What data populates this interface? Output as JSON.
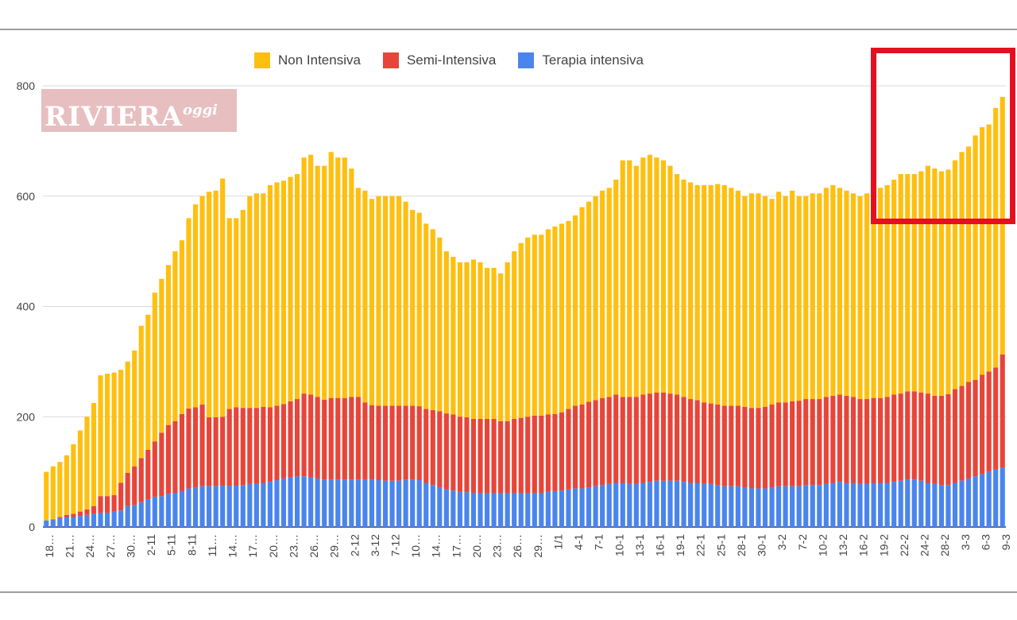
{
  "legend": [
    {
      "name": "Non Intensiva",
      "color": "#ffbf0f"
    },
    {
      "name": "Semi-Intensiva",
      "color": "#e8453a"
    },
    {
      "name": "Terapia intensiva",
      "color": "#4a85ee"
    }
  ],
  "watermark": {
    "main": "RIVIERA",
    "sup": "oggi"
  },
  "chart_data": {
    "type": "bar",
    "stacked": true,
    "ylim": [
      0,
      800
    ],
    "yticks": [
      "0",
      "200",
      "400",
      "600",
      "800"
    ],
    "grid": true,
    "legend_position": "top",
    "xtick_labels": [
      "18…",
      "21…",
      "24…",
      "27…",
      "30…",
      "2-11",
      "5-11",
      "8-11",
      "11…",
      "14…",
      "17…",
      "20…",
      "23…",
      "26…",
      "29…",
      "2-12",
      "3-12",
      "7-12",
      "10…",
      "14…",
      "17…",
      "20…",
      "23…",
      "26…",
      "29…",
      "1/1",
      "4-1",
      "7-1",
      "10-1",
      "13-1",
      "16-1",
      "19-1",
      "22-1",
      "25-1",
      "28-1",
      "30-1",
      "3-2",
      "7-2",
      "10-2",
      "13-2",
      "16-2",
      "19-2",
      "22-2",
      "24-2",
      "28-2",
      "3-3",
      "6-3",
      "9-3"
    ],
    "totals": [
      100,
      110,
      118,
      130,
      150,
      175,
      200,
      225,
      275,
      278,
      280,
      285,
      300,
      320,
      365,
      385,
      425,
      450,
      475,
      500,
      520,
      560,
      585,
      600,
      608,
      610,
      632,
      560,
      560,
      575,
      600,
      605,
      605,
      620,
      625,
      628,
      635,
      640,
      670,
      675,
      655,
      655,
      680,
      670,
      670,
      650,
      615,
      610,
      595,
      600,
      600,
      600,
      600,
      590,
      575,
      570,
      550,
      540,
      525,
      500,
      490,
      480,
      480,
      485,
      480,
      470,
      470,
      460,
      480,
      500,
      515,
      525,
      530,
      530,
      540,
      545,
      550,
      555,
      565,
      580,
      590,
      600,
      610,
      615,
      630,
      665,
      665,
      655,
      670,
      675,
      670,
      665,
      655,
      640,
      630,
      625,
      620,
      620,
      620,
      622,
      620,
      615,
      610,
      600,
      605,
      605,
      600,
      595,
      608,
      600,
      610,
      600,
      600,
      605,
      605,
      615,
      620,
      615,
      610,
      605,
      600,
      605,
      610,
      615,
      620,
      630,
      640,
      640,
      640,
      645,
      655,
      650,
      645,
      648,
      665,
      680,
      690,
      710,
      725,
      730,
      760,
      780
    ],
    "series": [
      {
        "name": "Terapia intensiva",
        "values": [
          12,
          14,
          16,
          18,
          18,
          20,
          22,
          24,
          26,
          26,
          28,
          30,
          38,
          40,
          45,
          50,
          55,
          56,
          60,
          62,
          65,
          70,
          72,
          74,
          74,
          74,
          75,
          74,
          75,
          76,
          78,
          78,
          80,
          82,
          85,
          88,
          90,
          92,
          92,
          90,
          88,
          86,
          86,
          86,
          86,
          86,
          86,
          86,
          86,
          85,
          84,
          84,
          84,
          86,
          86,
          85,
          80,
          76,
          72,
          68,
          66,
          64,
          63,
          62,
          62,
          62,
          62,
          62,
          62,
          62,
          62,
          62,
          62,
          62,
          64,
          65,
          66,
          68,
          70,
          70,
          72,
          74,
          76,
          78,
          80,
          80,
          78,
          78,
          80,
          82,
          84,
          84,
          84,
          84,
          82,
          80,
          80,
          78,
          78,
          76,
          74,
          74,
          74,
          72,
          70,
          70,
          70,
          72,
          74,
          74,
          74,
          74,
          76,
          76,
          76,
          78,
          80,
          82,
          80,
          80,
          78,
          78,
          80,
          80,
          80,
          82,
          84,
          86,
          86,
          84,
          80,
          78,
          76,
          76,
          80,
          84,
          88,
          92,
          96,
          100,
          104,
          108
        ]
      },
      {
        "name": "Semi-Intensiva",
        "values": [
          0,
          0,
          2,
          4,
          6,
          8,
          10,
          14,
          30,
          30,
          30,
          50,
          60,
          70,
          80,
          90,
          100,
          115,
          125,
          130,
          140,
          145,
          145,
          148,
          125,
          125,
          125,
          140,
          142,
          140,
          138,
          138,
          138,
          135,
          135,
          135,
          138,
          140,
          150,
          150,
          148,
          145,
          148,
          148,
          148,
          150,
          150,
          140,
          135,
          135,
          136,
          136,
          136,
          134,
          134,
          134,
          134,
          136,
          138,
          138,
          138,
          136,
          136,
          134,
          134,
          134,
          134,
          130,
          130,
          134,
          136,
          138,
          140,
          140,
          140,
          140,
          142,
          146,
          150,
          152,
          155,
          156,
          158,
          158,
          160,
          156,
          158,
          158,
          160,
          160,
          160,
          160,
          158,
          156,
          154,
          152,
          150,
          148,
          146,
          146,
          146,
          146,
          146,
          146,
          146,
          146,
          148,
          150,
          152,
          152,
          154,
          155,
          156,
          156,
          156,
          158,
          158,
          158,
          158,
          156,
          154,
          154,
          154,
          154,
          156,
          158,
          158,
          160,
          160,
          160,
          162,
          160,
          162,
          165,
          170,
          172,
          175,
          175,
          180,
          182,
          185,
          205
        ]
      },
      {
        "name": "Non Intensiva",
        "values": [
          88,
          96,
          100,
          108,
          126,
          147,
          168,
          187,
          219,
          222,
          222,
          205,
          202,
          210,
          240,
          245,
          270,
          279,
          290,
          308,
          315,
          345,
          368,
          378,
          409,
          411,
          432,
          346,
          343,
          359,
          384,
          389,
          387,
          403,
          405,
          405,
          407,
          408,
          428,
          435,
          419,
          424,
          446,
          436,
          436,
          414,
          379,
          384,
          374,
          380,
          380,
          380,
          380,
          370,
          355,
          351,
          336,
          328,
          315,
          294,
          286,
          280,
          281,
          289,
          284,
          274,
          274,
          268,
          288,
          304,
          317,
          325,
          328,
          328,
          336,
          340,
          342,
          341,
          345,
          358,
          363,
          370,
          376,
          379,
          390,
          429,
          429,
          419,
          430,
          433,
          426,
          421,
          413,
          400,
          394,
          393,
          390,
          394,
          396,
          400,
          400,
          395,
          390,
          382,
          389,
          389,
          382,
          373,
          382,
          374,
          382,
          371,
          368,
          373,
          373,
          379,
          382,
          375,
          372,
          369,
          368,
          373,
          376,
          381,
          384,
          390,
          398,
          394,
          394,
          401,
          413,
          412,
          407,
          407,
          415,
          424,
          427,
          443,
          449,
          448,
          471,
          467
        ]
      }
    ]
  }
}
